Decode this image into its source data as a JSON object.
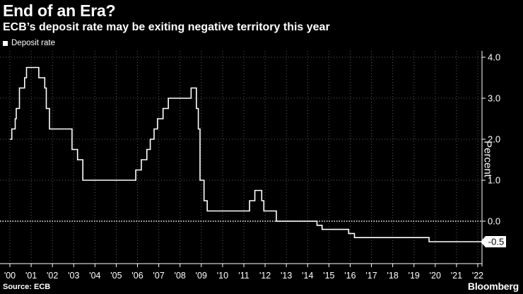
{
  "header": {
    "title": "End of an Era?",
    "subtitle": "ECB’s deposit rate may be exiting negative territory this year"
  },
  "footer": {
    "source": "Source: ECB",
    "brand": "Bloomberg"
  },
  "colors": {
    "background": "#000000",
    "line": "#ffffff",
    "grid": "#5a5a5a",
    "zero_line": "#ffffff"
  },
  "chart_data": {
    "type": "line",
    "title": "End of an Era?",
    "subtitle": "ECB’s deposit rate may be exiting negative territory this year",
    "ylabel": "Percent",
    "xlabel": "",
    "legend": {
      "entries": [
        "Deposit rate"
      ],
      "placement": "top-left"
    },
    "xlim": [
      2000.0,
      2022.3
    ],
    "ylim": [
      -0.9,
      4.2
    ],
    "y_ticks": [
      4.0,
      3.0,
      2.0,
      1.0,
      0.0
    ],
    "y_tick_labels": [
      "4.0",
      "3.0",
      "2.0",
      "1.0",
      "0.0"
    ],
    "x_ticks": [
      2000,
      2001,
      2002,
      2003,
      2004,
      2005,
      2006,
      2007,
      2008,
      2009,
      2010,
      2011,
      2012,
      2013,
      2014,
      2015,
      2016,
      2017,
      2018,
      2019,
      2020,
      2021,
      2022
    ],
    "x_tick_labels": [
      "'00",
      "'01",
      "'02",
      "'03",
      "'04",
      "'05",
      "'06",
      "'07",
      "'08",
      "'09",
      "'10",
      "'11",
      "'12",
      "'13",
      "'14",
      "'15",
      "'16",
      "'17",
      "'18",
      "'19",
      "'20",
      "'21",
      "'22"
    ],
    "grid": "vertical dotted at each year, horizontal dotted at y ticks",
    "end_label": "-0.5",
    "series": [
      {
        "name": "Deposit rate",
        "points": [
          [
            2000.0,
            2.0
          ],
          [
            2000.09,
            2.25
          ],
          [
            2000.25,
            2.5
          ],
          [
            2000.3,
            2.75
          ],
          [
            2000.45,
            3.25
          ],
          [
            2000.69,
            3.5
          ],
          [
            2000.78,
            3.75
          ],
          [
            2001.36,
            3.5
          ],
          [
            2001.64,
            3.25
          ],
          [
            2001.71,
            2.75
          ],
          [
            2001.78,
            2.75
          ],
          [
            2001.86,
            2.25
          ],
          [
            2002.92,
            1.75
          ],
          [
            2003.18,
            1.5
          ],
          [
            2003.43,
            1.0
          ],
          [
            2005.92,
            1.25
          ],
          [
            2006.18,
            1.5
          ],
          [
            2006.44,
            1.75
          ],
          [
            2006.6,
            2.0
          ],
          [
            2006.78,
            2.25
          ],
          [
            2006.94,
            2.5
          ],
          [
            2007.2,
            2.75
          ],
          [
            2007.45,
            3.0
          ],
          [
            2008.52,
            3.25
          ],
          [
            2008.77,
            2.75
          ],
          [
            2008.86,
            2.25
          ],
          [
            2008.94,
            1.0
          ],
          [
            2009.05,
            1.0
          ],
          [
            2009.13,
            0.5
          ],
          [
            2009.28,
            0.25
          ],
          [
            2011.27,
            0.5
          ],
          [
            2011.52,
            0.75
          ],
          [
            2011.84,
            0.5
          ],
          [
            2011.94,
            0.25
          ],
          [
            2012.53,
            0.0
          ],
          [
            2014.44,
            -0.1
          ],
          [
            2014.68,
            -0.2
          ],
          [
            2015.93,
            -0.3
          ],
          [
            2016.2,
            -0.4
          ],
          [
            2019.71,
            -0.5
          ],
          [
            2022.3,
            -0.5
          ]
        ]
      }
    ]
  }
}
